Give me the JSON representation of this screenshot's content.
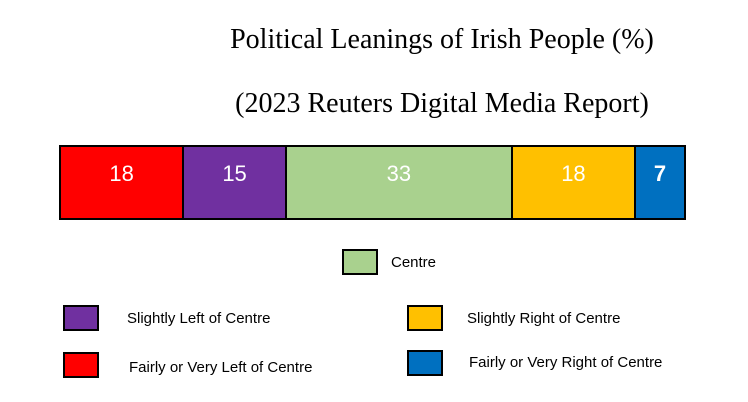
{
  "chart_data": {
    "type": "bar",
    "orientation": "horizontal-stacked",
    "title": "Political Leanings of Irish People (%)",
    "subtitle": "(2023 Reuters Digital Media Report)",
    "categories": [
      "Fairly or Very Left of Centre",
      "Slightly Left of Centre",
      "Centre",
      "Slightly Right of Centre",
      "Fairly or Very Right of Centre"
    ],
    "values": [
      18,
      15,
      33,
      18,
      7
    ],
    "colors": [
      "#ff0000",
      "#7030a0",
      "#a9d18e",
      "#ffc000",
      "#0070c0"
    ],
    "legend": "bottom",
    "legend_items": [
      {
        "label": "Centre",
        "color": "#a9d18e"
      },
      {
        "label": "Slightly Left of Centre",
        "color": "#7030a0"
      },
      {
        "label": "Slightly Right of Centre",
        "color": "#ffc000"
      },
      {
        "label": "Fairly or Very Left of Centre",
        "color": "#ff0000"
      },
      {
        "label": "Fairly or Very Right of Centre",
        "color": "#0070c0"
      }
    ]
  }
}
